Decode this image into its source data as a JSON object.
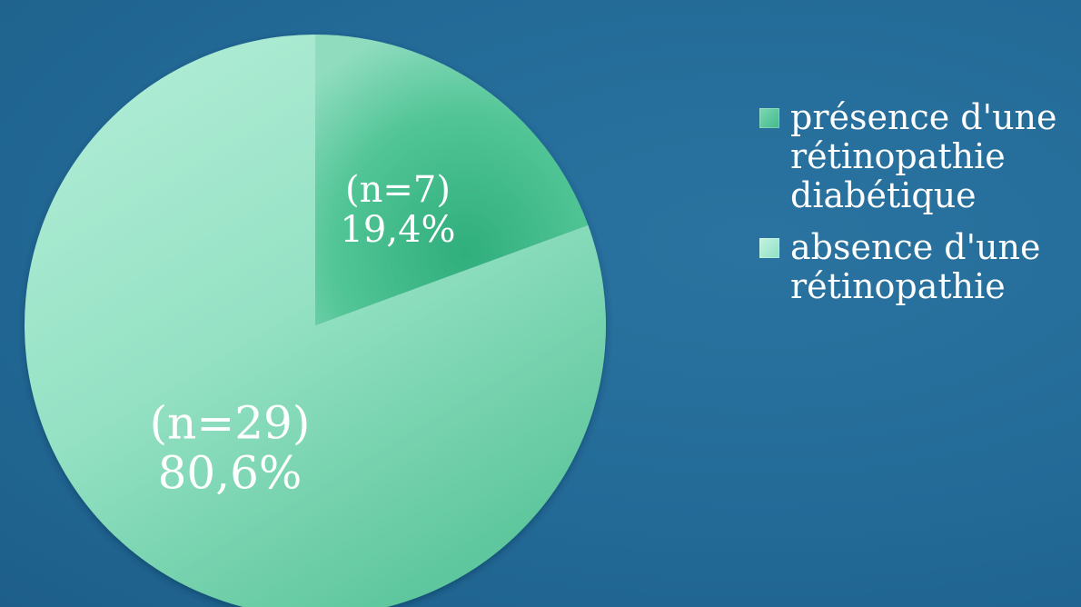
{
  "chart_data": {
    "type": "pie",
    "slices": [
      {
        "name": "présence d'une rétinopathie diabétique",
        "count_label": "(n=7)",
        "percent_label": "19,4%",
        "value": 19.4,
        "color": "#3fb98a"
      },
      {
        "name": "absence d'une rétinopathie",
        "count_label": "(n=29)",
        "percent_label": "80,6%",
        "value": 80.6,
        "color": "#8fe0c2"
      }
    ],
    "legend": {
      "placement": "right",
      "items": [
        {
          "lines": [
            "présence d'une",
            "rétinopathie",
            "diabétique"
          ],
          "color": "#3fb98a"
        },
        {
          "lines": [
            "absence d'une",
            "rétinopathie"
          ],
          "color": "#8fe0c2"
        }
      ]
    }
  }
}
